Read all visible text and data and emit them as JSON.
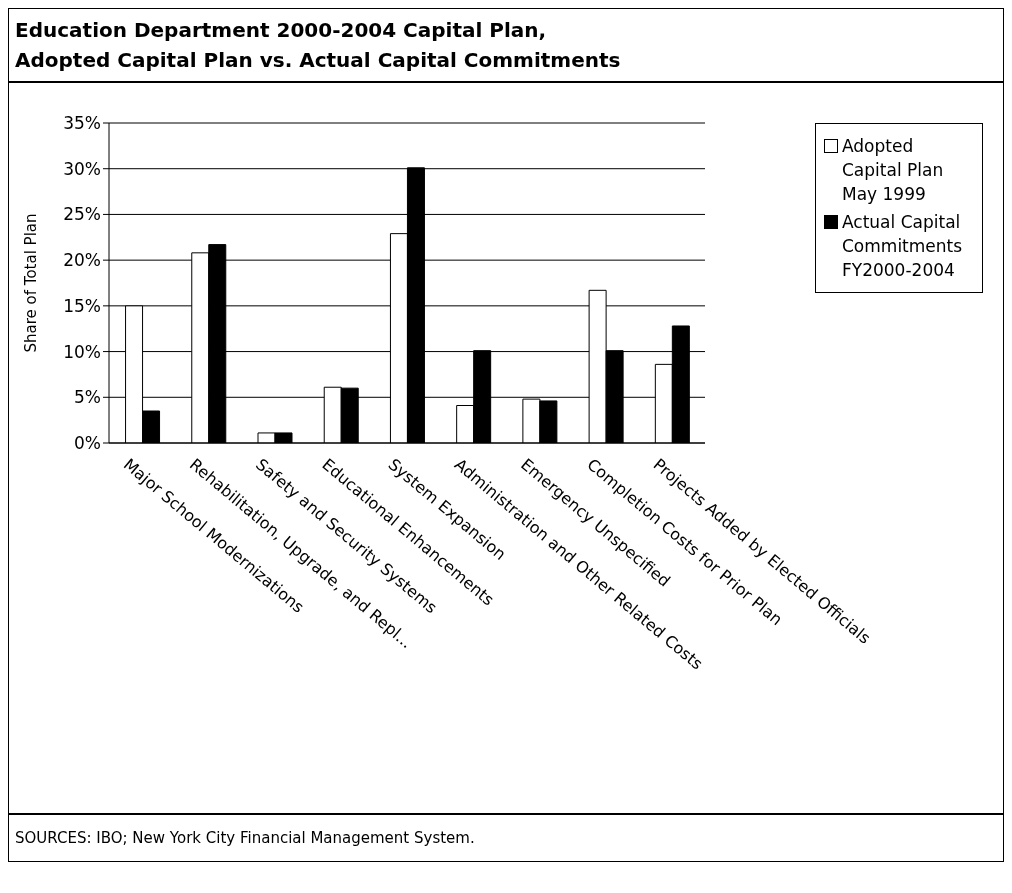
{
  "chart_data": {
    "type": "bar",
    "title": "Education Department 2000-2004 Capital Plan,\nAdopted Capital Plan vs. Actual Capital Commitments",
    "ylabel": "Share of Total Plan",
    "categories": [
      "Major School Modernizations",
      "Rehabilitation, Upgrade, and Repl...",
      "Safety and Security Systems",
      "Educational Enhancements",
      "System Expansion",
      "Administration and Other Related Costs",
      "Emergency Unspecified",
      "Completion Costs for Prior Plan",
      "Projects Added by Elected Officials"
    ],
    "series": [
      {
        "name": "Adopted Capital Plan May 1999",
        "color": "#ffffff",
        "values": [
          15.0,
          20.8,
          1.1,
          6.1,
          22.9,
          4.1,
          4.8,
          16.7,
          8.6
        ]
      },
      {
        "name": "Actual Capital Commitments FY2000-2004",
        "color": "#000000",
        "values": [
          3.5,
          21.7,
          1.1,
          6.0,
          30.1,
          10.1,
          4.6,
          10.1,
          12.8
        ]
      }
    ],
    "ylim": [
      0,
      35
    ],
    "yticks": [
      {
        "value": 0,
        "label": "0%"
      },
      {
        "value": 5,
        "label": "5%"
      },
      {
        "value": 10,
        "label": "10%"
      },
      {
        "value": 15,
        "label": "15%"
      },
      {
        "value": 20,
        "label": "20%"
      },
      {
        "value": 25,
        "label": "25%"
      },
      {
        "value": 30,
        "label": "30%"
      },
      {
        "value": 35,
        "label": "35%"
      }
    ],
    "grid": "y",
    "legend": "right",
    "annotations": [
      "SOURCES: IBO; New York City  Financial Management System."
    ]
  }
}
